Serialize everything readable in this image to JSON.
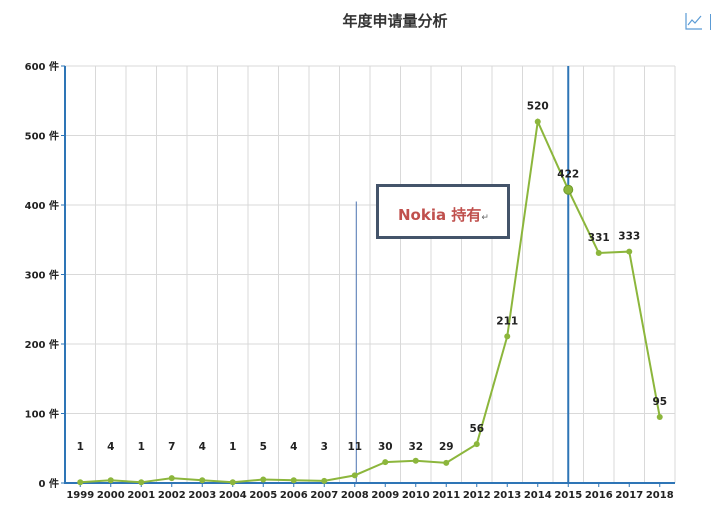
{
  "title": "年度申请量分析",
  "annotation": {
    "text": "Nokia 持有",
    "mark": "↵"
  },
  "colors": {
    "line": "#8cb63c",
    "axis": "#2e75b6",
    "grid": "#d9d9d9",
    "annotation_text": "#c0504d",
    "annotation_border": "#44546a"
  },
  "chart_data": {
    "type": "line",
    "title": "年度申请量分析",
    "categories": [
      "1999",
      "2000",
      "2001",
      "2002",
      "2003",
      "2004",
      "2005",
      "2006",
      "2007",
      "2008",
      "2009",
      "2010",
      "2011",
      "2012",
      "2013",
      "2014",
      "2015",
      "2016",
      "2017",
      "2018"
    ],
    "series": [
      {
        "values": [
          1,
          4,
          1,
          7,
          4,
          1,
          5,
          4,
          3,
          11,
          30,
          32,
          29,
          56,
          211,
          520,
          422,
          331,
          333,
          95
        ]
      }
    ],
    "yticks": [
      "0 件",
      "100 件",
      "200 件",
      "300 件",
      "400 件",
      "500 件",
      "600 件"
    ],
    "ylim": [
      0,
      600
    ],
    "grid": true,
    "markers": {
      "thin_line_year": "2008",
      "thick_line_year": "2015"
    }
  }
}
